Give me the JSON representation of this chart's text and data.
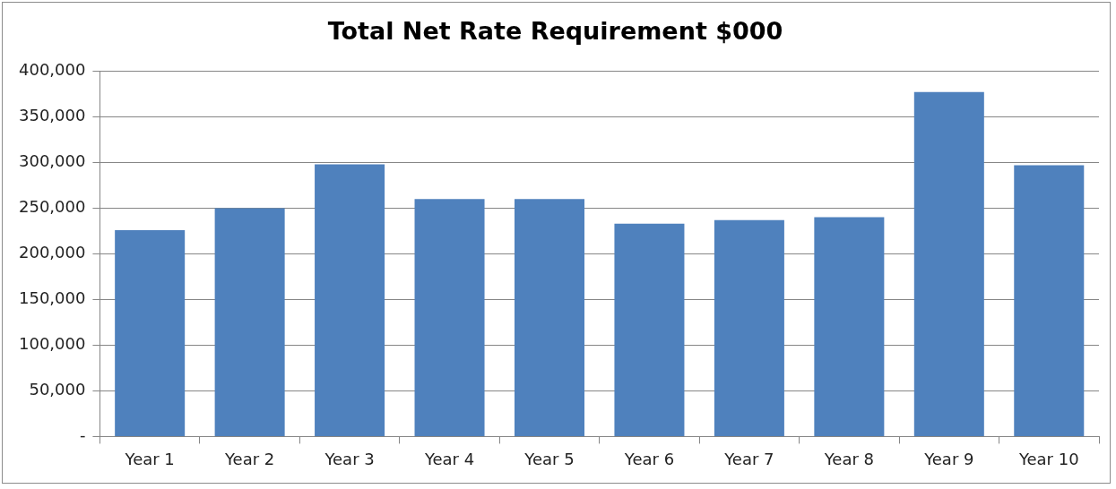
{
  "chart_data": {
    "type": "bar",
    "title": "Total Net Rate Requirement $000",
    "categories": [
      "Year 1",
      "Year 2",
      "Year 3",
      "Year 4",
      "Year 5",
      "Year 6",
      "Year 7",
      "Year 8",
      "Year 9",
      "Year 10"
    ],
    "values": [
      226000,
      250000,
      298000,
      260000,
      260000,
      233000,
      237000,
      240000,
      377000,
      297000
    ],
    "color": "#4f81bd",
    "ylim": [
      0,
      400000
    ],
    "yticks": [
      {
        "value": 0,
        "label": "-"
      },
      {
        "value": 50000,
        "label": "50,000"
      },
      {
        "value": 100000,
        "label": "100,000"
      },
      {
        "value": 150000,
        "label": "150,000"
      },
      {
        "value": 200000,
        "label": "200,000"
      },
      {
        "value": 250000,
        "label": "250,000"
      },
      {
        "value": 300000,
        "label": "300,000"
      },
      {
        "value": 350000,
        "label": "350,000"
      },
      {
        "value": 400000,
        "label": "400,000"
      }
    ],
    "grid": "y",
    "legend": false
  }
}
